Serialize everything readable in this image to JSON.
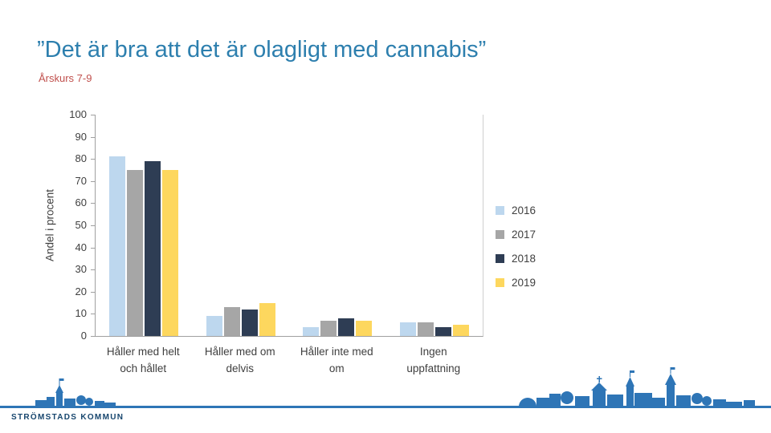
{
  "slide": {
    "title": "”Det är bra att det är olagligt med cannabis”",
    "subtitle": "Årskurs 7-9",
    "footer_logo": "STRÖMSTADS KOMMUN"
  },
  "chart_data": {
    "type": "bar",
    "title": "",
    "xlabel": "",
    "ylabel": "Andel i procent",
    "ylim": [
      0,
      100
    ],
    "ytick_step": 10,
    "grid": false,
    "legend_position": "right",
    "categories": [
      "Håller med helt\noch hållet",
      "Håller med om\ndelvis",
      "Håller inte med\nom",
      "Ingen\nuppfattning"
    ],
    "series": [
      {
        "name": "2016",
        "color": "#bdd7ee",
        "values": [
          81,
          9,
          4,
          6
        ]
      },
      {
        "name": "2017",
        "color": "#a6a6a6",
        "values": [
          75,
          13,
          7,
          6
        ]
      },
      {
        "name": "2018",
        "color": "#2e3d54",
        "values": [
          79,
          12,
          8,
          4
        ]
      },
      {
        "name": "2019",
        "color": "#fdd75e",
        "values": [
          75,
          15,
          7,
          5
        ]
      }
    ]
  },
  "colors": {
    "title": "#2d7fae",
    "subtitle": "#c0504d",
    "axis": "#a0a0a0",
    "footer_accent": "#2e75b6",
    "logo_text": "#17466e"
  }
}
